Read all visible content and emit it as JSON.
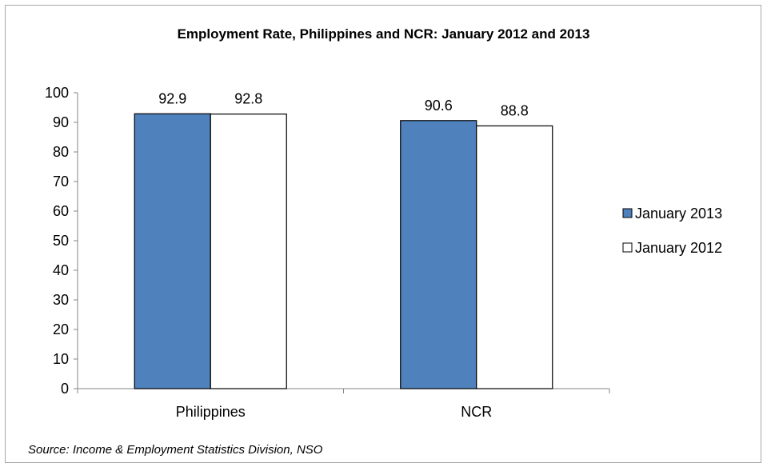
{
  "chart_data": {
    "type": "bar",
    "title": "Employment Rate, Philippines and NCR: January 2012 and 2013",
    "categories": [
      "Philippines",
      "NCR"
    ],
    "series": [
      {
        "name": "January 2013",
        "values": [
          92.9,
          90.6
        ],
        "color": "#4f81bd"
      },
      {
        "name": "January 2012",
        "values": [
          92.8,
          88.8
        ],
        "color": "#ffffff"
      }
    ],
    "ylim": [
      0,
      100
    ],
    "yticks": [
      "0",
      "10",
      "20",
      "30",
      "40",
      "50",
      "60",
      "70",
      "80",
      "90",
      "100"
    ],
    "data_labels": true,
    "grid": false,
    "legend_position": "right",
    "xlabel": "",
    "ylabel": ""
  },
  "source_note": "Source: Income & Employment Statistics Division, NSO"
}
